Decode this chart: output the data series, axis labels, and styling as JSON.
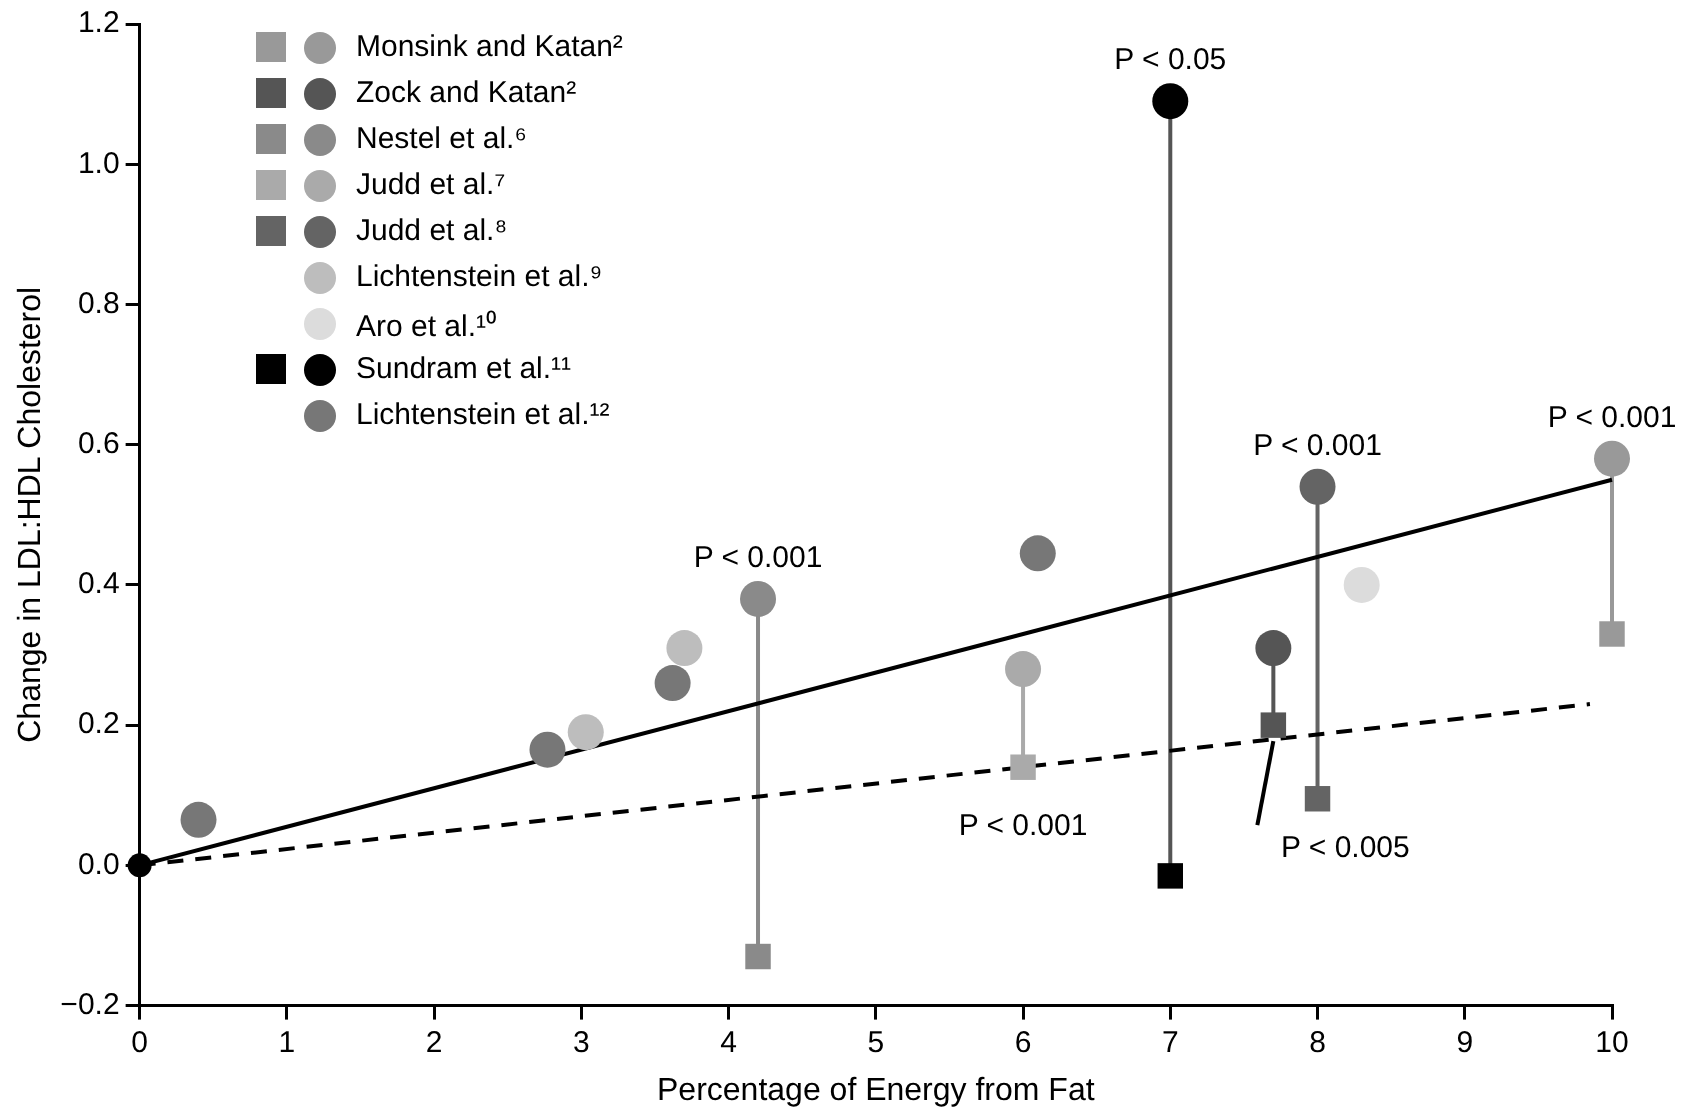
{
  "chart_data": {
    "type": "scatter",
    "xlabel": "Percentage of Energy from Fat",
    "ylabel": "Change in LDL:HDL Cholesterol",
    "xlim": [
      0,
      10
    ],
    "xticks": [
      0,
      1,
      2,
      3,
      4,
      5,
      6,
      7,
      8,
      9,
      10
    ],
    "ylim": [
      -0.2,
      1.2
    ],
    "yticks": [
      {
        "value": -0.2,
        "label": "−0.2"
      },
      {
        "value": 0,
        "label": "0.0"
      },
      {
        "value": 0.2,
        "label": "0.2"
      },
      {
        "value": 0.4,
        "label": "0.4"
      },
      {
        "value": 0.6,
        "label": "0.6"
      },
      {
        "value": 0.8,
        "label": "0.8"
      },
      {
        "value": 1,
        "label": "1.0"
      },
      {
        "value": 1.2,
        "label": "1.2"
      }
    ],
    "legend": "top left",
    "series": [
      {
        "type": "line",
        "color": "#000000",
        "line_style": "solid",
        "x": [
          0,
          10
        ],
        "values": [
          0,
          0.55
        ]
      },
      {
        "type": "line",
        "color": "#000000",
        "line_style": "dashed",
        "x": [
          0,
          9.85
        ],
        "values": [
          0,
          0.23
        ]
      },
      {
        "type": "line",
        "color": "#999999",
        "line_style": "solid",
        "x": [
          10,
          10
        ],
        "values": [
          0.58,
          0.33
        ]
      },
      {
        "type": "line",
        "color": "#555555",
        "line_style": "solid",
        "x": [
          7.7,
          7.7
        ],
        "values": [
          0.31,
          0.2
        ]
      },
      {
        "type": "line",
        "color": "#8a8a8a",
        "line_style": "solid",
        "x": [
          4.2,
          4.2
        ],
        "values": [
          0.38,
          -0.13
        ]
      },
      {
        "type": "line",
        "color": "#aaaaaa",
        "line_style": "solid",
        "x": [
          6,
          6
        ],
        "values": [
          0.28,
          0.14
        ]
      },
      {
        "type": "line",
        "color": "#646464",
        "line_style": "solid",
        "x": [
          8,
          8
        ],
        "values": [
          0.54,
          0.095
        ]
      },
      {
        "type": "line",
        "color": "#555555",
        "line_style": "solid",
        "x": [
          7,
          7
        ],
        "values": [
          1.09,
          -0.015
        ]
      },
      {
        "name": "Monsink and Katan²",
        "color": "#999999",
        "marker": "circle",
        "x": [
          10
        ],
        "values": [
          0.58
        ]
      },
      {
        "color": "#999999",
        "marker": "square",
        "x": [
          10
        ],
        "values": [
          0.33
        ]
      },
      {
        "name": "Zock and Katan²",
        "color": "#555555",
        "marker": "circle",
        "x": [
          7.7
        ],
        "values": [
          0.31
        ]
      },
      {
        "color": "#555555",
        "marker": "square",
        "x": [
          7.7
        ],
        "values": [
          0.2
        ]
      },
      {
        "name": "Nestel et al.⁶",
        "color": "#8a8a8a",
        "marker": "circle",
        "x": [
          4.2
        ],
        "values": [
          0.38
        ]
      },
      {
        "color": "#8a8a8a",
        "marker": "square",
        "x": [
          4.2
        ],
        "values": [
          -0.13
        ]
      },
      {
        "name": "Judd et al.⁷",
        "color": "#aaaaaa",
        "marker": "circle",
        "x": [
          6
        ],
        "values": [
          0.28
        ]
      },
      {
        "color": "#aaaaaa",
        "marker": "square",
        "x": [
          6
        ],
        "values": [
          0.14
        ]
      },
      {
        "name": "Judd et al.⁸",
        "color": "#646464",
        "marker": "circle",
        "x": [
          8
        ],
        "values": [
          0.54
        ]
      },
      {
        "color": "#646464",
        "marker": "square",
        "x": [
          8
        ],
        "values": [
          0.095
        ]
      },
      {
        "name": "Lichtenstein et al.⁹",
        "color": "#bdbdbd",
        "marker": "circle",
        "x": [
          3.03,
          3.7
        ],
        "values": [
          0.19,
          0.31
        ]
      },
      {
        "name": "Aro et al.¹⁰",
        "color": "#dcdcdc",
        "marker": "circle",
        "x": [
          8.3
        ],
        "values": [
          0.4
        ]
      },
      {
        "name": "Sundram et al.¹¹",
        "color": "#000000",
        "marker": "circle",
        "x": [
          7
        ],
        "values": [
          1.09
        ]
      },
      {
        "color": "#000000",
        "marker": "square",
        "x": [
          7
        ],
        "values": [
          -0.015
        ]
      },
      {
        "name": "Lichtenstein et al.¹²",
        "color": "#777777",
        "marker": "circle",
        "x": [
          0.4,
          2.77,
          3.62,
          6.1
        ],
        "values": [
          0.065,
          0.165,
          0.26,
          0.445
        ]
      },
      {
        "color": "#000000",
        "marker": "circle",
        "x": [
          0
        ],
        "values": [
          0
        ]
      }
    ],
    "annotations": [
      {
        "text": "P < 0.001",
        "x": 4.2,
        "y": 0.38
      },
      {
        "text": "P < 0.05",
        "x": 7,
        "y": 1.09
      },
      {
        "text": "P < 0.001",
        "x": 8,
        "y": 0.54
      },
      {
        "text": "P < 0.001",
        "x": 10,
        "y": 0.58
      },
      {
        "text": "P < 0.001",
        "x": 6,
        "y": 0.14
      },
      {
        "text": "P < 0.005",
        "x": 7.7,
        "y": 0.2
      }
    ]
  }
}
